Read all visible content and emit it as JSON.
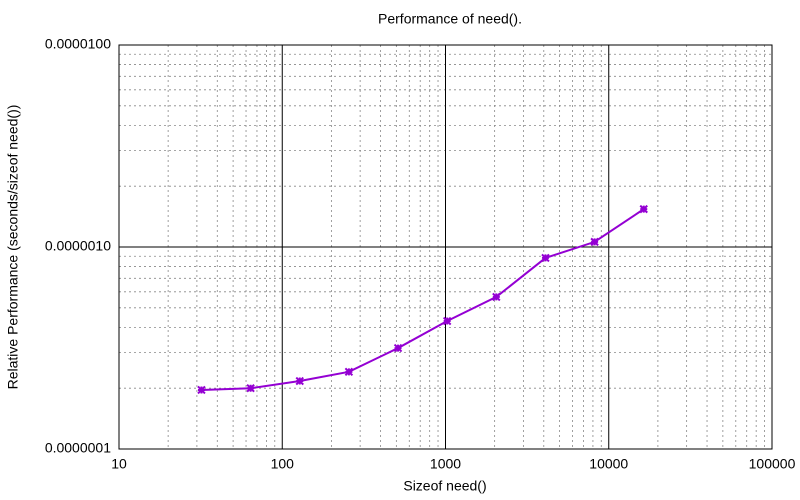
{
  "chart_data": {
    "type": "line",
    "title": "Performance of need().",
    "xlabel": "Sizeof need()",
    "ylabel": "Relative Performance (seconds/sizeof need())",
    "x": [
      32,
      64,
      128,
      256,
      512,
      1024,
      2048,
      4096,
      8192,
      16384
    ],
    "values": [
      1.96e-07,
      2e-07,
      2.17e-07,
      2.41e-07,
      3.16e-07,
      4.3e-07,
      5.66e-07,
      8.83e-07,
      1.06e-06,
      1.54e-06
    ],
    "color": "#9400d3",
    "xscale": "log",
    "yscale": "log",
    "xlim": [
      10,
      100000
    ],
    "ylim": [
      1e-07,
      1e-05
    ],
    "xticks": [
      10,
      100,
      1000,
      10000,
      100000
    ],
    "yticks": [
      {
        "value": 1e-07,
        "label": "0.0000001"
      },
      {
        "value": 1e-06,
        "label": "0.0000010"
      },
      {
        "value": 1e-05,
        "label": "0.0000100"
      }
    ],
    "grid": true
  }
}
